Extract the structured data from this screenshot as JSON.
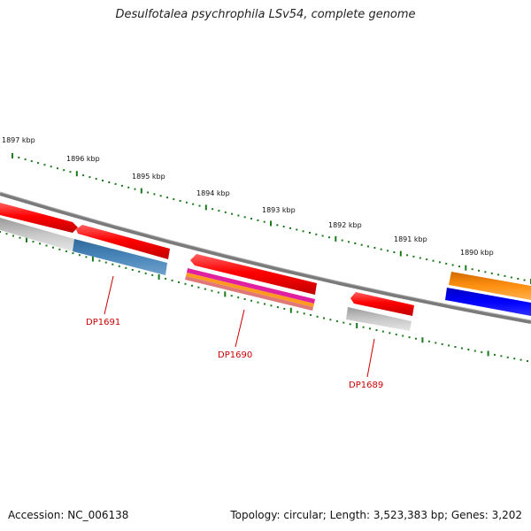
{
  "title": "Desulfotalea psychrophila LSv54, complete genome",
  "footer": {
    "accession": "Accession: NC_006138",
    "summary": "Topology: circular; Length: 3,523,383 bp; Genes: 3,202"
  },
  "scale_labels": [
    "1897 kbp",
    "1896 kbp",
    "1895 kbp",
    "1894 kbp",
    "1893 kbp",
    "1892 kbp",
    "1891 kbp",
    "1890 kbp"
  ],
  "gene_labels": [
    "DP1691",
    "DP1690",
    "DP1689"
  ],
  "colors": {
    "backbone": "#7f7f7f",
    "cds": "#ff0000",
    "gene_gray": "#b8b8b8",
    "steel_blue": "#4a80b0",
    "blue": "#0000ee",
    "orange": "#ff8c00",
    "magenta": "#e020a0",
    "tick": "#1a7a1a",
    "label": "#cc0000"
  }
}
